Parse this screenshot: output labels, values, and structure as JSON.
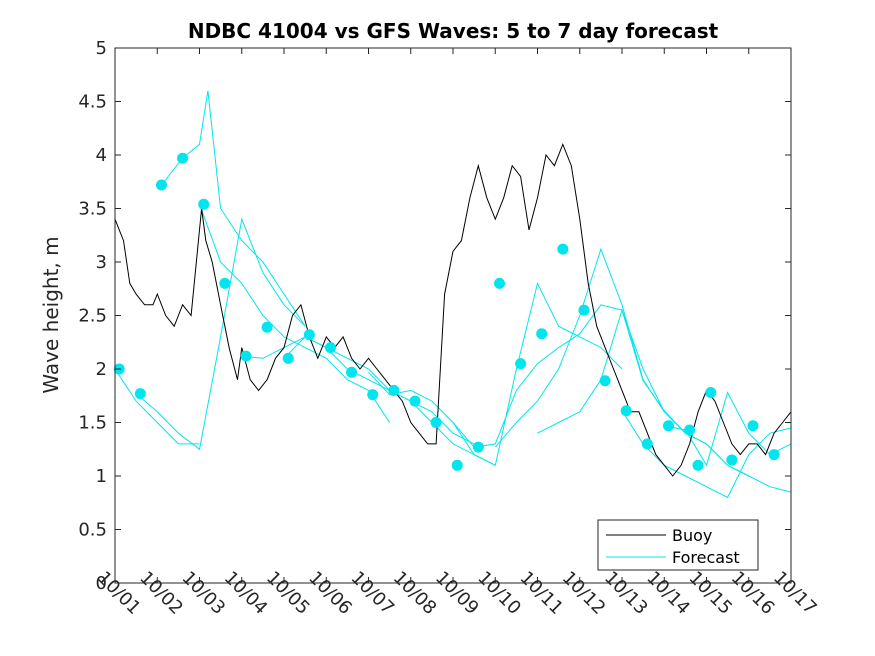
{
  "chart_data": {
    "type": "line",
    "title": "NDBC 41004 vs GFS Waves: 5 to 7 day forecast",
    "xlabel": "",
    "ylabel": "Wave height, m",
    "xlim": [
      0,
      16
    ],
    "ylim": [
      0,
      5
    ],
    "x_ticks": [
      "10/01",
      "10/02",
      "10/03",
      "10/04",
      "10/05",
      "10/06",
      "10/07",
      "10/08",
      "10/09",
      "10/10",
      "10/11",
      "10/12",
      "10/13",
      "10/14",
      "10/15",
      "10/16",
      "10/17"
    ],
    "y_ticks": [
      "0",
      "0.5",
      "1",
      "1.5",
      "2",
      "2.5",
      "3",
      "3.5",
      "4",
      "4.5",
      "5"
    ],
    "legend": {
      "position": "bottom-right",
      "entries": [
        "Buoy",
        "Forecast"
      ]
    },
    "colors": {
      "buoy": "#000000",
      "forecast": "#00e5ee",
      "marker": "#00e5ee",
      "axis": "#262626"
    },
    "series": [
      {
        "name": "Buoy",
        "x": [
          0,
          0.2,
          0.35,
          0.5,
          0.7,
          0.9,
          1.0,
          1.2,
          1.4,
          1.5,
          1.6,
          1.8,
          1.95,
          2.05,
          2.15,
          2.3,
          2.5,
          2.7,
          2.9,
          3.0,
          3.2,
          3.4,
          3.6,
          3.8,
          4.0,
          4.2,
          4.4,
          4.6,
          4.8,
          5.0,
          5.2,
          5.4,
          5.6,
          5.8,
          6.0,
          6.2,
          6.4,
          6.6,
          6.8,
          7.0,
          7.2,
          7.4,
          7.6,
          7.8,
          8.0,
          8.2,
          8.4,
          8.6,
          8.8,
          9.0,
          9.2,
          9.4,
          9.6,
          9.8,
          10.0,
          10.2,
          10.4,
          10.6,
          10.8,
          11.0,
          11.2,
          11.4,
          11.6,
          11.8,
          12.0,
          12.2,
          12.4,
          12.6,
          12.8,
          13.0,
          13.2,
          13.4,
          13.6,
          13.8,
          14.0,
          14.2,
          14.4,
          14.6,
          14.8,
          15.0,
          15.2,
          15.4,
          15.6,
          15.8,
          16.0
        ],
        "y": [
          3.4,
          3.2,
          2.8,
          2.7,
          2.6,
          2.6,
          2.7,
          2.5,
          2.4,
          2.5,
          2.6,
          2.5,
          3.1,
          3.5,
          3.2,
          3.0,
          2.6,
          2.2,
          1.9,
          2.2,
          1.9,
          1.8,
          1.9,
          2.1,
          2.2,
          2.5,
          2.6,
          2.3,
          2.1,
          2.3,
          2.2,
          2.3,
          2.1,
          2.0,
          2.1,
          2.0,
          1.9,
          1.8,
          1.7,
          1.5,
          1.4,
          1.3,
          1.3,
          2.7,
          3.1,
          3.2,
          3.6,
          3.9,
          3.6,
          3.4,
          3.6,
          3.9,
          3.8,
          3.3,
          3.6,
          4.0,
          3.9,
          4.1,
          3.9,
          3.4,
          2.8,
          2.4,
          2.2,
          2.0,
          1.8,
          1.6,
          1.6,
          1.4,
          1.2,
          1.1,
          1.0,
          1.1,
          1.3,
          1.6,
          1.8,
          1.7,
          1.5,
          1.3,
          1.2,
          1.3,
          1.3,
          1.2,
          1.4,
          1.5,
          1.6
        ]
      },
      {
        "name": "Forecast",
        "runs": [
          {
            "x": [
              0,
              0.5,
              1.0,
              1.5,
              2.0
            ],
            "y": [
              2.0,
              1.7,
              1.5,
              1.3,
              1.3
            ]
          },
          {
            "x": [
              0.5,
              1.0,
              1.5,
              2.0,
              2.5,
              3.0,
              3.5,
              4.0,
              4.5
            ],
            "y": [
              1.77,
              1.6,
              1.4,
              1.25,
              2.3,
              3.4,
              2.9,
              2.6,
              2.4
            ]
          },
          {
            "x": [
              1.1,
              1.6,
              2.0,
              2.2,
              2.5,
              3.0,
              3.5,
              4.0,
              4.5
            ],
            "y": [
              3.72,
              3.97,
              4.1,
              4.6,
              3.5,
              3.2,
              3.0,
              2.7,
              2.4
            ]
          },
          {
            "x": [
              2.0,
              2.5,
              3.0,
              3.5,
              4.0,
              4.5,
              5.0,
              5.5,
              6.0,
              6.5
            ],
            "y": [
              3.54,
              3.0,
              2.8,
              2.5,
              2.3,
              2.2,
              2.1,
              1.9,
              1.8,
              1.5
            ]
          },
          {
            "x": [
              3.0,
              3.5,
              4.0,
              4.5,
              5.0,
              5.5,
              6.0,
              6.5,
              7.0,
              7.5,
              8.0,
              8.5
            ],
            "y": [
              2.12,
              2.1,
              2.2,
              2.3,
              2.2,
              2.0,
              1.9,
              1.8,
              1.7,
              1.6,
              1.4,
              1.3
            ]
          },
          {
            "x": [
              4.0,
              4.5,
              5.0,
              5.5,
              6.0,
              6.5,
              7.0,
              7.5,
              8.0,
              8.5,
              9.0
            ],
            "y": [
              2.1,
              2.3,
              2.2,
              2.1,
              2.0,
              1.8,
              1.7,
              1.5,
              1.3,
              1.2,
              1.1
            ]
          },
          {
            "x": [
              6.0,
              6.5,
              7.0,
              7.5,
              8.0,
              8.5,
              9.0,
              9.5,
              10.0,
              10.5,
              11.0,
              11.5,
              12.0
            ],
            "y": [
              1.97,
              1.76,
              1.8,
              1.7,
              1.5,
              1.2,
              1.1,
              2.0,
              2.8,
              2.4,
              2.3,
              2.2,
              2.0
            ]
          },
          {
            "x": [
              8.0,
              8.5,
              9.0,
              9.5,
              10.0,
              10.5,
              11.0,
              11.5,
              12.0,
              12.5,
              13.0
            ],
            "y": [
              1.5,
              1.27,
              1.3,
              1.8,
              2.05,
              2.2,
              2.33,
              2.6,
              2.55,
              2.0,
              1.6
            ]
          },
          {
            "x": [
              9.0,
              9.5,
              10.0,
              10.5,
              11.0,
              11.5,
              12.0,
              12.5,
              13.0,
              13.5,
              14.0,
              14.5,
              15.0
            ],
            "y": [
              1.27,
              1.5,
              1.7,
              2.0,
              2.5,
              3.12,
              2.6,
              1.9,
              1.6,
              1.4,
              1.3,
              1.1,
              1.0
            ]
          },
          {
            "x": [
              10.0,
              10.5,
              11.0,
              11.5,
              12.0,
              12.5,
              13.0,
              13.5,
              14.0,
              14.5,
              15.0,
              15.5,
              16.0
            ],
            "y": [
              1.4,
              1.5,
              1.6,
              1.9,
              2.55,
              1.89,
              1.61,
              1.4,
              1.3,
              1.1,
              1.0,
              0.9,
              0.85
            ]
          },
          {
            "x": [
              12.0,
              12.5,
              13.0,
              13.5,
              14.0,
              14.5,
              15.0,
              15.5,
              16.0
            ],
            "y": [
              1.61,
              1.3,
              1.1,
              1.0,
              0.9,
              0.8,
              1.2,
              1.4,
              1.45
            ]
          },
          {
            "x": [
              13.0,
              13.5,
              14.0,
              14.5,
              15.0,
              15.5,
              16.0
            ],
            "y": [
              1.47,
              1.43,
              1.1,
              1.78,
              1.4,
              1.2,
              1.3
            ]
          }
        ],
        "markers": {
          "x": [
            0.1,
            0.6,
            1.1,
            1.6,
            2.1,
            2.6,
            3.1,
            3.6,
            4.1,
            4.6,
            5.1,
            5.6,
            6.1,
            6.6,
            7.1,
            7.6,
            8.1,
            8.6,
            9.1,
            9.6,
            10.1,
            10.6,
            11.1,
            11.6,
            12.1,
            12.6,
            13.1,
            13.6,
            13.8,
            14.1,
            14.6,
            15.1,
            15.6
          ],
          "y": [
            2.0,
            1.77,
            3.72,
            3.97,
            3.54,
            2.8,
            2.12,
            2.39,
            2.1,
            2.32,
            2.2,
            1.97,
            1.76,
            1.8,
            1.7,
            1.5,
            1.1,
            1.27,
            2.8,
            2.05,
            2.33,
            3.12,
            2.55,
            1.89,
            1.61,
            1.3,
            1.47,
            1.43,
            1.1,
            1.78,
            1.15,
            1.47,
            1.2
          ]
        }
      }
    ]
  }
}
